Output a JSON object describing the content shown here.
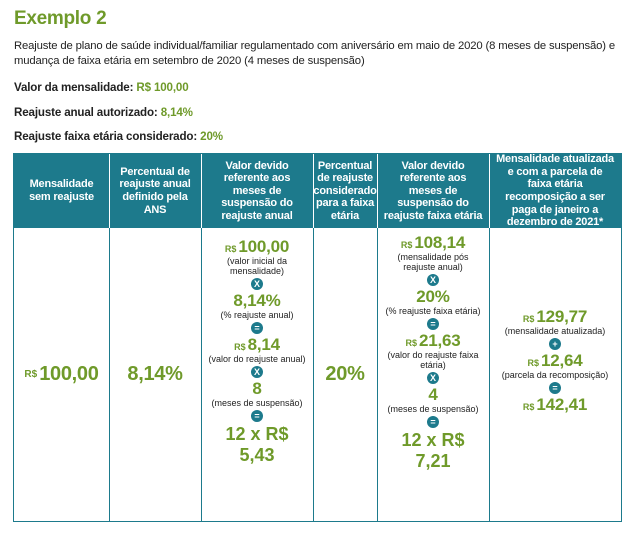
{
  "title": "Exemplo 2",
  "description": "Reajuste de plano de saúde individual/familiar regulamentado com aniversário em maio de 2020 (8 meses de suspensão) e mudança de faixa etária em setembro de 2020 (4 meses de suspensão)",
  "facts": [
    {
      "label": "Valor da mensalidade:",
      "value": "R$ 100,00"
    },
    {
      "label": "Reajuste anual autorizado:",
      "value": "8,14%"
    },
    {
      "label": "Reajuste faixa etária considerado:",
      "value": "20%"
    }
  ],
  "table": {
    "headers": [
      "Mensalidade sem reajuste",
      "Percentual de reajuste anual definido pela ANS",
      "Valor devido referente aos meses de suspensão do reajuste anual",
      "Percentual de reajuste considerado para a faixa etária",
      "Valor devido referente aos meses de suspensão do reajuste faixa etária",
      "Mensalidade atualizada e com a parcela de faixa etária recomposição a ser paga de janeiro a dezembro de 2021*"
    ],
    "col1": {
      "currency": "R$",
      "value": "100,00"
    },
    "col2": {
      "value": "8,14%"
    },
    "col3": {
      "v1_currency": "R$",
      "v1": "100,00",
      "v1_cap": "(valor inicial da mensalidade)",
      "op1": "X",
      "v2": "8,14%",
      "v2_cap": "(% reajuste anual)",
      "op2": "=",
      "v3_currency": "R$",
      "v3": "8,14",
      "v3_cap": "(valor do reajuste anual)",
      "op3": "X",
      "v4": "8",
      "v4_cap": "(meses de suspensão)",
      "op4": "=",
      "result_line1": "12 x R$",
      "result_line2": "5,43"
    },
    "col4": {
      "value": "20%"
    },
    "col5": {
      "v1_currency": "R$",
      "v1": "108,14",
      "v1_cap": "(mensalidade pós reajuste anual)",
      "op1": "X",
      "v2": "20%",
      "v2_cap": "(% reajuste faixa etária)",
      "op2": "=",
      "v3_currency": "R$",
      "v3": "21,63",
      "v3_cap": "(valor do reajuste faixa etária)",
      "op3": "X",
      "v4": "4",
      "v4_cap": "(meses de suspensão)",
      "op4": "=",
      "result_line1": "12 x R$",
      "result_line2": "7,21"
    },
    "col6": {
      "v1_currency": "R$",
      "v1": "129,77",
      "v1_cap": "(mensalidade atualizada)",
      "op1": "+",
      "v2_currency": "R$",
      "v2": "12,64",
      "v2_cap": "(parcela da recomposição)",
      "op2": "=",
      "v3_currency": "R$",
      "v3": "142,41"
    }
  }
}
